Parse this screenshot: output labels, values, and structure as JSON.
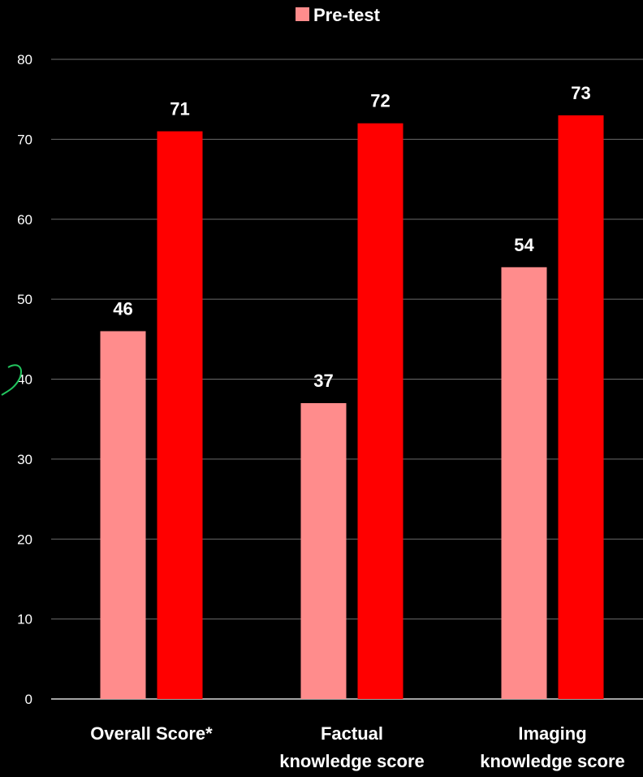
{
  "chart_data": {
    "type": "bar",
    "categories": [
      [
        "Overall Score*"
      ],
      [
        "Factual",
        "knowledge score"
      ],
      [
        "Imaging",
        "knowledge score"
      ]
    ],
    "series": [
      {
        "name": "Pre-test",
        "values": [
          46,
          37,
          54
        ],
        "color": "#ff8c8c"
      },
      {
        "values": [
          71,
          72,
          73
        ],
        "color": "#ff0000"
      }
    ],
    "ylim": [
      0,
      80
    ],
    "yticks": [
      "0",
      "10",
      "20",
      "30",
      "40",
      "50",
      "60",
      "70",
      "80"
    ],
    "grid": true,
    "legend": "top"
  }
}
